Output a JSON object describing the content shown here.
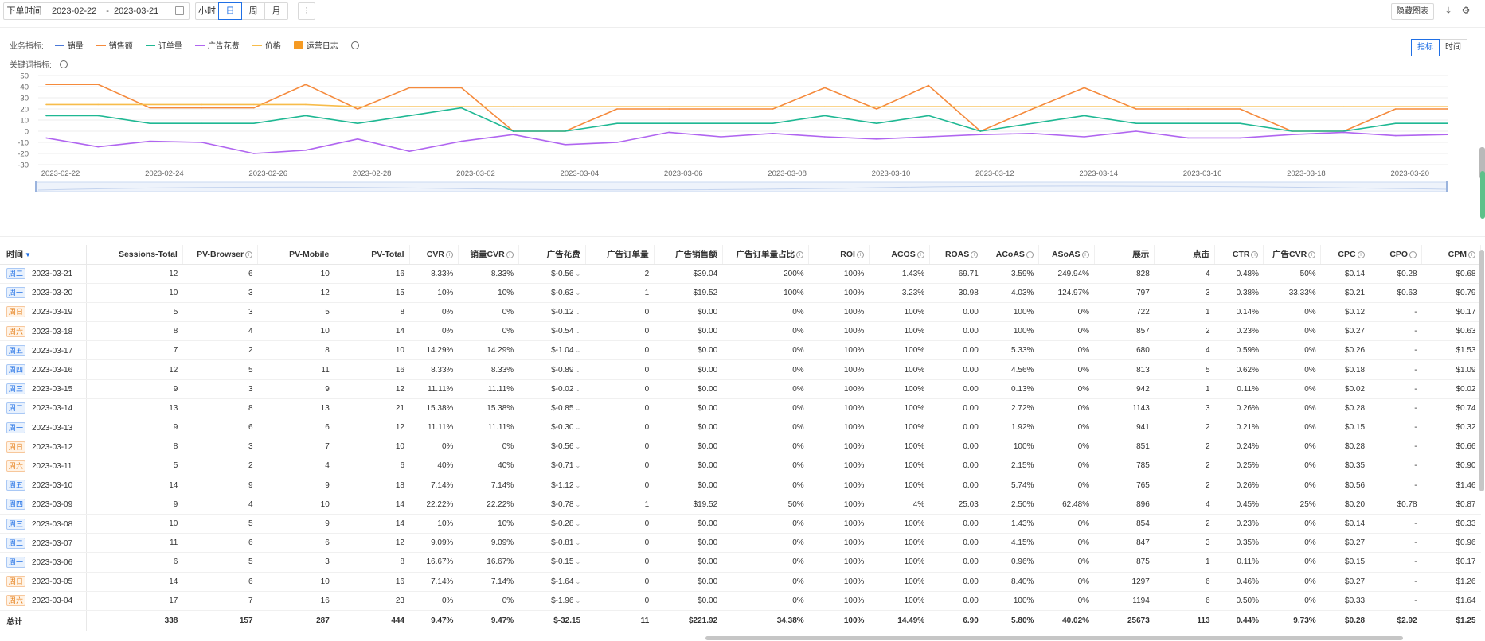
{
  "toolbar": {
    "date_label": "下单时间",
    "date_start": "2023-02-22",
    "date_sep": "-",
    "date_end": "2023-03-21",
    "granularity": [
      "小时",
      "日",
      "周",
      "月"
    ],
    "granularity_selected": "日",
    "hide_chart": "隐藏图表"
  },
  "chart_panel": {
    "business_metrics_label": "业务指标:",
    "legend": [
      {
        "name": "销量",
        "color": "#4a78d8"
      },
      {
        "name": "销售额",
        "color": "#f58a3c"
      },
      {
        "name": "订单量",
        "color": "#1fb893"
      },
      {
        "name": "广告花费",
        "color": "#b065f0"
      },
      {
        "name": "价格",
        "color": "#f7bc4a"
      }
    ],
    "ops_log": "运营日志",
    "key_metrics_label": "关键词指标:",
    "view_toggle": [
      "指标",
      "时间"
    ],
    "view_selected": "指标"
  },
  "chart_data": {
    "type": "line",
    "x": [
      "2023-02-22",
      "2023-02-23",
      "2023-02-24",
      "2023-02-25",
      "2023-02-26",
      "2023-02-27",
      "2023-02-28",
      "2023-03-01",
      "2023-03-02",
      "2023-03-03",
      "2023-03-04",
      "2023-03-05",
      "2023-03-06",
      "2023-03-07",
      "2023-03-08",
      "2023-03-09",
      "2023-03-10",
      "2023-03-11",
      "2023-03-12",
      "2023-03-13",
      "2023-03-14",
      "2023-03-15",
      "2023-03-16",
      "2023-03-17",
      "2023-03-18",
      "2023-03-19",
      "2023-03-20",
      "2023-03-21"
    ],
    "x_tick_labels": [
      "2023-02-22",
      "2023-02-24",
      "2023-02-26",
      "2023-02-28",
      "2023-03-02",
      "2023-03-04",
      "2023-03-06",
      "2023-03-08",
      "2023-03-10",
      "2023-03-12",
      "2023-03-14",
      "2023-03-16",
      "2023-03-18",
      "2023-03-20"
    ],
    "y_ticks": [
      50,
      40,
      30,
      20,
      10,
      0,
      -10,
      -20,
      -30
    ],
    "ylim": [
      -30,
      50
    ],
    "series": [
      {
        "name": "销售额",
        "color": "#f58a3c",
        "values": [
          42,
          42,
          21,
          21,
          21,
          42,
          20,
          39,
          39,
          0,
          0,
          20,
          20,
          20,
          20,
          39,
          20,
          41,
          0,
          20,
          39,
          20,
          20,
          20,
          0,
          0,
          20,
          20
        ]
      },
      {
        "name": "价格",
        "color": "#f7bc4a",
        "values": [
          24,
          24,
          24,
          24,
          24,
          24,
          22,
          22,
          22,
          22,
          22,
          22,
          22,
          22,
          22,
          22,
          22,
          22,
          22,
          22,
          22,
          22,
          22,
          22,
          22,
          22,
          22,
          22
        ]
      },
      {
        "name": "订单量",
        "color": "#1fb893",
        "values": [
          14,
          14,
          7,
          7,
          7,
          14,
          7,
          14,
          21,
          0,
          0,
          7,
          7,
          7,
          7,
          14,
          7,
          14,
          0,
          7,
          14,
          7,
          7,
          7,
          0,
          0,
          7,
          7
        ]
      },
      {
        "name": "广告花费",
        "color": "#b065f0",
        "values": [
          -6,
          -14,
          -9,
          -10,
          -20,
          -17,
          -7,
          -18,
          -9,
          -3,
          -12,
          -10,
          -1,
          -5,
          -2,
          -5,
          -7,
          -5,
          -3,
          -2,
          -5,
          0,
          -6,
          -6,
          -3,
          -1,
          -4,
          -3
        ]
      }
    ]
  },
  "table": {
    "headers": [
      "时间",
      "Sessions-Total",
      "PV-Browser",
      "PV-Mobile",
      "PV-Total",
      "CVR",
      "销量CVR",
      "广告花费",
      "广告订单量",
      "广告销售额",
      "广告订单量占比",
      "ROI",
      "ACOS",
      "ROAS",
      "ACoAS",
      "ASoAS",
      "展示",
      "点击",
      "CTR",
      "广告CVR",
      "CPC",
      "CPO",
      "CPM"
    ],
    "rows": [
      [
        "周二",
        "2023-03-21",
        "12",
        "6",
        "10",
        "16",
        "8.33%",
        "8.33%",
        "$-0.56",
        "2",
        "$39.04",
        "200%",
        "100%",
        "1.43%",
        "69.71",
        "3.59%",
        "249.94%",
        "828",
        "4",
        "0.48%",
        "50%",
        "$0.14",
        "$0.28",
        "$0.68"
      ],
      [
        "周一",
        "2023-03-20",
        "10",
        "3",
        "12",
        "15",
        "10%",
        "10%",
        "$-0.63",
        "1",
        "$19.52",
        "100%",
        "100%",
        "3.23%",
        "30.98",
        "4.03%",
        "124.97%",
        "797",
        "3",
        "0.38%",
        "33.33%",
        "$0.21",
        "$0.63",
        "$0.79"
      ],
      [
        "周日",
        "2023-03-19",
        "5",
        "3",
        "5",
        "8",
        "0%",
        "0%",
        "$-0.12",
        "0",
        "$0.00",
        "0%",
        "100%",
        "100%",
        "0.00",
        "100%",
        "0%",
        "722",
        "1",
        "0.14%",
        "0%",
        "$0.12",
        "-",
        "$0.17"
      ],
      [
        "周六",
        "2023-03-18",
        "8",
        "4",
        "10",
        "14",
        "0%",
        "0%",
        "$-0.54",
        "0",
        "$0.00",
        "0%",
        "100%",
        "100%",
        "0.00",
        "100%",
        "0%",
        "857",
        "2",
        "0.23%",
        "0%",
        "$0.27",
        "-",
        "$0.63"
      ],
      [
        "周五",
        "2023-03-17",
        "7",
        "2",
        "8",
        "10",
        "14.29%",
        "14.29%",
        "$-1.04",
        "0",
        "$0.00",
        "0%",
        "100%",
        "100%",
        "0.00",
        "5.33%",
        "0%",
        "680",
        "4",
        "0.59%",
        "0%",
        "$0.26",
        "-",
        "$1.53"
      ],
      [
        "周四",
        "2023-03-16",
        "12",
        "5",
        "11",
        "16",
        "8.33%",
        "8.33%",
        "$-0.89",
        "0",
        "$0.00",
        "0%",
        "100%",
        "100%",
        "0.00",
        "4.56%",
        "0%",
        "813",
        "5",
        "0.62%",
        "0%",
        "$0.18",
        "-",
        "$1.09"
      ],
      [
        "周三",
        "2023-03-15",
        "9",
        "3",
        "9",
        "12",
        "11.11%",
        "11.11%",
        "$-0.02",
        "0",
        "$0.00",
        "0%",
        "100%",
        "100%",
        "0.00",
        "0.13%",
        "0%",
        "942",
        "1",
        "0.11%",
        "0%",
        "$0.02",
        "-",
        "$0.02"
      ],
      [
        "周二",
        "2023-03-14",
        "13",
        "8",
        "13",
        "21",
        "15.38%",
        "15.38%",
        "$-0.85",
        "0",
        "$0.00",
        "0%",
        "100%",
        "100%",
        "0.00",
        "2.72%",
        "0%",
        "1143",
        "3",
        "0.26%",
        "0%",
        "$0.28",
        "-",
        "$0.74"
      ],
      [
        "周一",
        "2023-03-13",
        "9",
        "6",
        "6",
        "12",
        "11.11%",
        "11.11%",
        "$-0.30",
        "0",
        "$0.00",
        "0%",
        "100%",
        "100%",
        "0.00",
        "1.92%",
        "0%",
        "941",
        "2",
        "0.21%",
        "0%",
        "$0.15",
        "-",
        "$0.32"
      ],
      [
        "周日",
        "2023-03-12",
        "8",
        "3",
        "7",
        "10",
        "0%",
        "0%",
        "$-0.56",
        "0",
        "$0.00",
        "0%",
        "100%",
        "100%",
        "0.00",
        "100%",
        "0%",
        "851",
        "2",
        "0.24%",
        "0%",
        "$0.28",
        "-",
        "$0.66"
      ],
      [
        "周六",
        "2023-03-11",
        "5",
        "2",
        "4",
        "6",
        "40%",
        "40%",
        "$-0.71",
        "0",
        "$0.00",
        "0%",
        "100%",
        "100%",
        "0.00",
        "2.15%",
        "0%",
        "785",
        "2",
        "0.25%",
        "0%",
        "$0.35",
        "-",
        "$0.90"
      ],
      [
        "周五",
        "2023-03-10",
        "14",
        "9",
        "9",
        "18",
        "7.14%",
        "7.14%",
        "$-1.12",
        "0",
        "$0.00",
        "0%",
        "100%",
        "100%",
        "0.00",
        "5.74%",
        "0%",
        "765",
        "2",
        "0.26%",
        "0%",
        "$0.56",
        "-",
        "$1.46"
      ],
      [
        "周四",
        "2023-03-09",
        "9",
        "4",
        "10",
        "14",
        "22.22%",
        "22.22%",
        "$-0.78",
        "1",
        "$19.52",
        "50%",
        "100%",
        "4%",
        "25.03",
        "2.50%",
        "62.48%",
        "896",
        "4",
        "0.45%",
        "25%",
        "$0.20",
        "$0.78",
        "$0.87"
      ],
      [
        "周三",
        "2023-03-08",
        "10",
        "5",
        "9",
        "14",
        "10%",
        "10%",
        "$-0.28",
        "0",
        "$0.00",
        "0%",
        "100%",
        "100%",
        "0.00",
        "1.43%",
        "0%",
        "854",
        "2",
        "0.23%",
        "0%",
        "$0.14",
        "-",
        "$0.33"
      ],
      [
        "周二",
        "2023-03-07",
        "11",
        "6",
        "6",
        "12",
        "9.09%",
        "9.09%",
        "$-0.81",
        "0",
        "$0.00",
        "0%",
        "100%",
        "100%",
        "0.00",
        "4.15%",
        "0%",
        "847",
        "3",
        "0.35%",
        "0%",
        "$0.27",
        "-",
        "$0.96"
      ],
      [
        "周一",
        "2023-03-06",
        "6",
        "5",
        "3",
        "8",
        "16.67%",
        "16.67%",
        "$-0.15",
        "0",
        "$0.00",
        "0%",
        "100%",
        "100%",
        "0.00",
        "0.96%",
        "0%",
        "875",
        "1",
        "0.11%",
        "0%",
        "$0.15",
        "-",
        "$0.17"
      ],
      [
        "周日",
        "2023-03-05",
        "14",
        "6",
        "10",
        "16",
        "7.14%",
        "7.14%",
        "$-1.64",
        "0",
        "$0.00",
        "0%",
        "100%",
        "100%",
        "0.00",
        "8.40%",
        "0%",
        "1297",
        "6",
        "0.46%",
        "0%",
        "$0.27",
        "-",
        "$1.26"
      ],
      [
        "周六",
        "2023-03-04",
        "17",
        "7",
        "16",
        "23",
        "0%",
        "0%",
        "$-1.96",
        "0",
        "$0.00",
        "0%",
        "100%",
        "100%",
        "0.00",
        "100%",
        "0%",
        "1194",
        "6",
        "0.50%",
        "0%",
        "$0.33",
        "-",
        "$1.64"
      ]
    ],
    "total": [
      "总计",
      "338",
      "157",
      "287",
      "444",
      "9.47%",
      "9.47%",
      "$-32.15",
      "11",
      "$221.92",
      "34.38%",
      "100%",
      "14.49%",
      "6.90",
      "5.80%",
      "40.02%",
      "25673",
      "113",
      "0.44%",
      "9.73%",
      "$0.28",
      "$2.92",
      "$1.25"
    ]
  }
}
